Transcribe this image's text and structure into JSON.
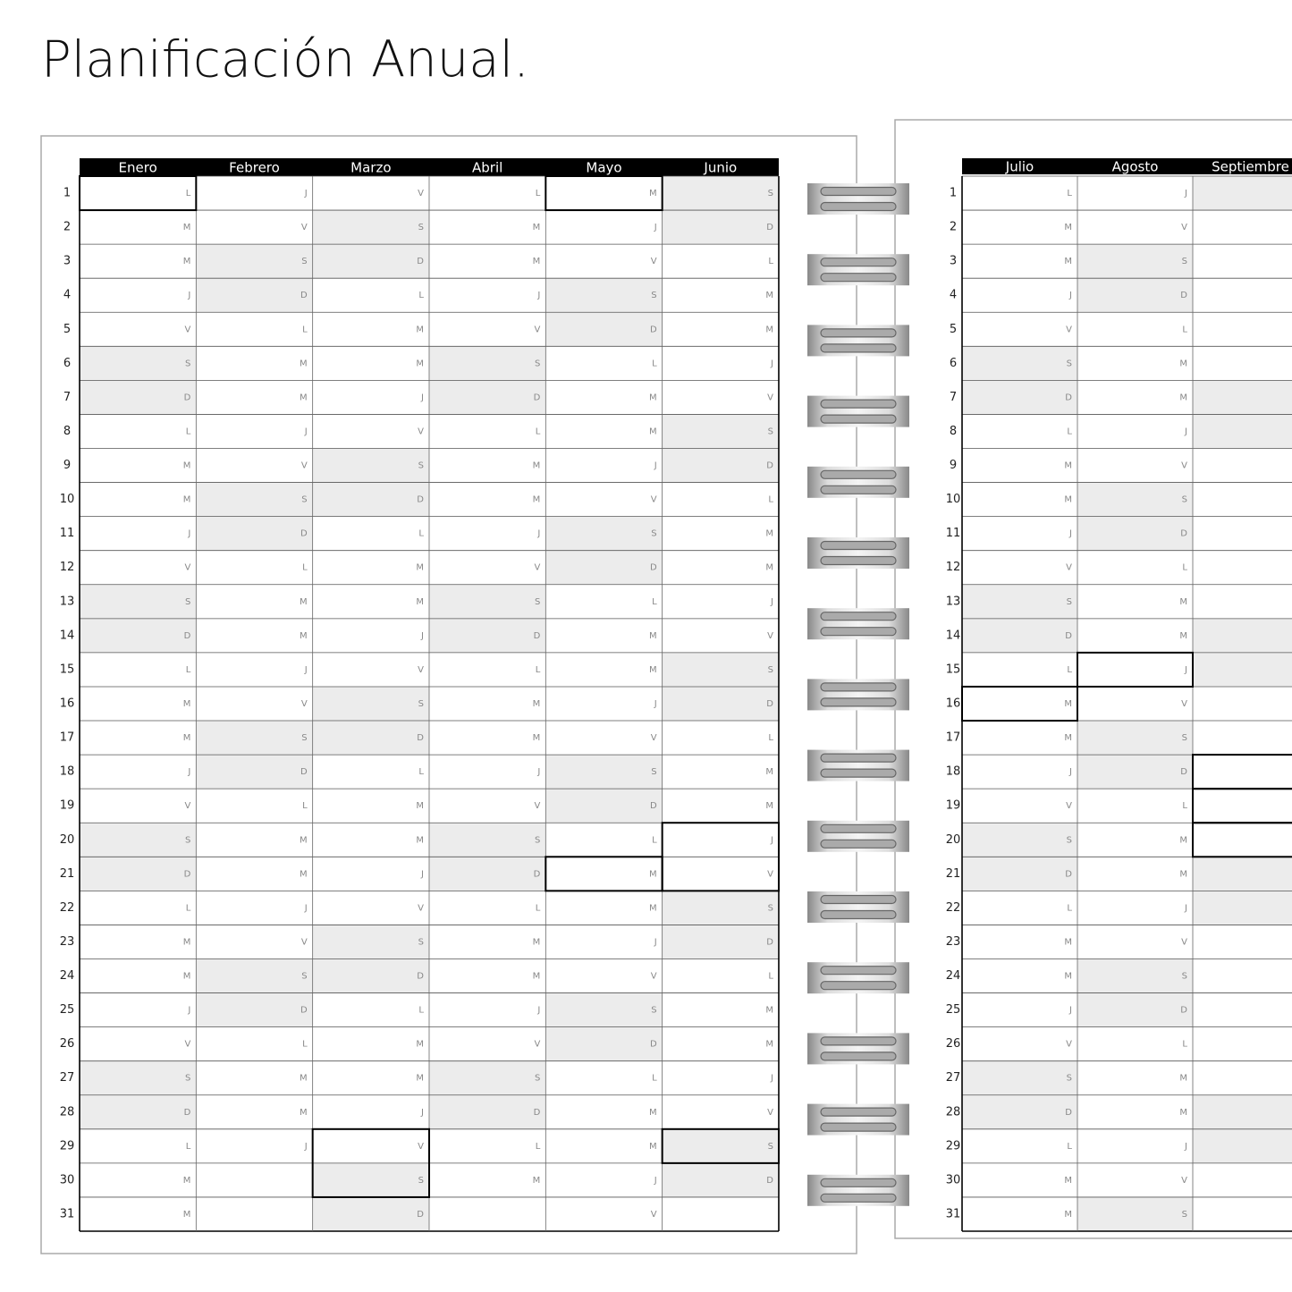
{
  "title": "Planificación Anual.",
  "days": [
    1,
    2,
    3,
    4,
    5,
    6,
    7,
    8,
    9,
    10,
    11,
    12,
    13,
    14,
    15,
    16,
    17,
    18,
    19,
    20,
    21,
    22,
    23,
    24,
    25,
    26,
    27,
    28,
    29,
    30,
    31
  ],
  "left_page": {
    "months": [
      {
        "name": "Enero",
        "weekdays": [
          "L",
          "M",
          "M",
          "J",
          "V",
          "S",
          "D",
          "L",
          "M",
          "M",
          "J",
          "V",
          "S",
          "D",
          "L",
          "M",
          "M",
          "J",
          "V",
          "S",
          "D",
          "L",
          "M",
          "M",
          "J",
          "V",
          "S",
          "D",
          "L",
          "M",
          "M"
        ]
      },
      {
        "name": "Febrero",
        "weekdays": [
          "J",
          "V",
          "S",
          "D",
          "L",
          "M",
          "M",
          "J",
          "V",
          "S",
          "D",
          "L",
          "M",
          "M",
          "J",
          "V",
          "S",
          "D",
          "L",
          "M",
          "M",
          "J",
          "V",
          "S",
          "D",
          "L",
          "M",
          "M",
          "J"
        ]
      },
      {
        "name": "Marzo",
        "weekdays": [
          "V",
          "S",
          "D",
          "L",
          "M",
          "M",
          "J",
          "V",
          "S",
          "D",
          "L",
          "M",
          "M",
          "J",
          "V",
          "S",
          "D",
          "L",
          "M",
          "M",
          "J",
          "V",
          "S",
          "D",
          "L",
          "M",
          "M",
          "J",
          "V",
          "S",
          "D"
        ]
      },
      {
        "name": "Abril",
        "weekdays": [
          "L",
          "M",
          "M",
          "J",
          "V",
          "S",
          "D",
          "L",
          "M",
          "M",
          "J",
          "V",
          "S",
          "D",
          "L",
          "M",
          "M",
          "J",
          "V",
          "S",
          "D",
          "L",
          "M",
          "M",
          "J",
          "V",
          "S",
          "D",
          "L",
          "M"
        ]
      },
      {
        "name": "Mayo",
        "weekdays": [
          "M",
          "J",
          "V",
          "S",
          "D",
          "L",
          "M",
          "M",
          "J",
          "V",
          "S",
          "D",
          "L",
          "M",
          "M",
          "J",
          "V",
          "S",
          "D",
          "L",
          "M",
          "M",
          "J",
          "V",
          "S",
          "D",
          "L",
          "M",
          "M",
          "J",
          "V"
        ]
      },
      {
        "name": "Junio",
        "weekdays": [
          "S",
          "D",
          "L",
          "M",
          "M",
          "J",
          "V",
          "S",
          "D",
          "L",
          "M",
          "M",
          "J",
          "V",
          "S",
          "D",
          "L",
          "M",
          "M",
          "J",
          "V",
          "S",
          "D",
          "L",
          "M",
          "M",
          "J",
          "V",
          "S",
          "D"
        ]
      }
    ]
  },
  "right_page": {
    "months": [
      {
        "name": "Julio",
        "weekdays": [
          "L",
          "M",
          "M",
          "J",
          "V",
          "S",
          "D",
          "L",
          "M",
          "M",
          "J",
          "V",
          "S",
          "D",
          "L",
          "M",
          "M",
          "J",
          "V",
          "S",
          "D",
          "L",
          "M",
          "M",
          "J",
          "V",
          "S",
          "D",
          "L",
          "M",
          "M"
        ]
      },
      {
        "name": "Agosto",
        "weekdays": [
          "J",
          "V",
          "S",
          "D",
          "L",
          "M",
          "M",
          "J",
          "V",
          "S",
          "D",
          "L",
          "M",
          "M",
          "J",
          "V",
          "S",
          "D",
          "L",
          "M",
          "M",
          "J",
          "V",
          "S",
          "D",
          "L",
          "M",
          "M",
          "J",
          "V",
          "S"
        ]
      },
      {
        "name": "Septiembre"
      }
    ]
  }
}
